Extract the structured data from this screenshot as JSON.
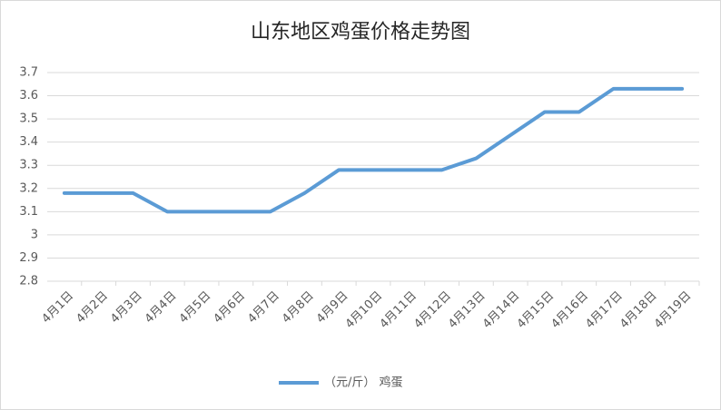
{
  "chart_data": {
    "type": "line",
    "title": "山东地区鸡蛋价格走势图",
    "categories": [
      "4月1日",
      "4月2日",
      "4月3日",
      "4月4日",
      "4月5日",
      "4月6日",
      "4月7日",
      "4月8日",
      "4月9日",
      "4月10日",
      "4月11日",
      "4月12日",
      "4月13日",
      "4月14日",
      "4月15日",
      "4月16日",
      "4月17日",
      "4月18日",
      "4月19日"
    ],
    "series": [
      {
        "name": "（元/斤） 鸡蛋",
        "color": "#5b9bd5",
        "values": [
          3.18,
          3.18,
          3.18,
          3.1,
          3.1,
          3.1,
          3.1,
          3.18,
          3.28,
          3.28,
          3.28,
          3.28,
          3.33,
          3.43,
          3.53,
          3.53,
          3.63,
          3.63,
          3.63
        ]
      }
    ],
    "ylim": [
      2.8,
      3.7
    ],
    "yticks": [
      2.8,
      2.9,
      3,
      3.1,
      3.2,
      3.3,
      3.4,
      3.5,
      3.6,
      3.7
    ],
    "grid": true,
    "legend": "bottom"
  }
}
